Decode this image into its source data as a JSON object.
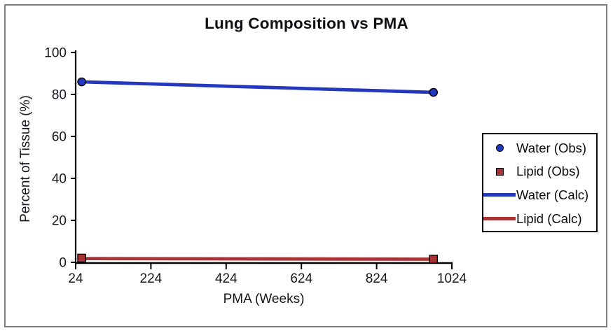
{
  "figure": {
    "frame_color": "#818181",
    "background": "#ffffff",
    "axis_color": "#000000",
    "tick_text_color": "#16161e"
  },
  "chart_data": {
    "type": "line",
    "title": "Lung Composition vs PMA",
    "xlabel": "PMA (Weeks)",
    "ylabel": "Percent of Tissue (%)",
    "xlim": [
      24,
      1024
    ],
    "ylim": [
      0,
      100
    ],
    "xticks": [
      24,
      224,
      424,
      624,
      824,
      1024
    ],
    "yticks": [
      0,
      20,
      40,
      60,
      80,
      100
    ],
    "grid": false,
    "legend_position": "right",
    "series": [
      {
        "name": "Water (Calc)",
        "type": "line",
        "color": "#2438be",
        "x": [
          40,
          975
        ],
        "y": [
          86,
          81
        ]
      },
      {
        "name": "Lipid (Calc)",
        "type": "line",
        "color": "#a93435",
        "x": [
          40,
          975
        ],
        "y": [
          1.8,
          1.5
        ]
      },
      {
        "name": "Water (Obs)",
        "type": "scatter",
        "marker": "circle",
        "color": "#2438be",
        "x": [
          40,
          975
        ],
        "y": [
          86,
          81
        ]
      },
      {
        "name": "Lipid (Obs)",
        "type": "scatter",
        "marker": "square",
        "color": "#a93435",
        "x": [
          40,
          975
        ],
        "y": [
          2,
          1.5
        ]
      }
    ],
    "legend": [
      {
        "label": "Water (Obs)",
        "marker": "circle",
        "color": "#2438be"
      },
      {
        "label": "Lipid (Obs)",
        "marker": "square",
        "color": "#a93435"
      },
      {
        "label": "Water (Calc)",
        "marker": "line",
        "color": "#2438be"
      },
      {
        "label": "Lipid (Calc)",
        "marker": "line",
        "color": "#a93435"
      }
    ]
  }
}
